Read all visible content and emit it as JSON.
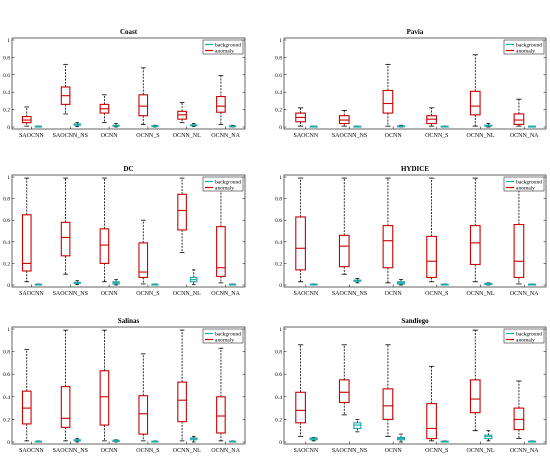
{
  "chart_data": [
    {
      "type": "box",
      "title": "Coast",
      "categories": [
        "SAOCNN",
        "SAOCNN_NS",
        "OCNN",
        "OCNN_S",
        "OCNN_NL",
        "OCNN_NA"
      ],
      "ylim": [
        0,
        1
      ],
      "yticks": [
        "0",
        "0.2",
        "0.4",
        "0.6",
        "0.8",
        "1"
      ],
      "legend": {
        "position": "top-right",
        "entries": [
          "background",
          "anomaly"
        ]
      },
      "series": [
        {
          "name": "anomaly",
          "color": "#cc0000",
          "boxes": [
            {
              "min": 0.01,
              "q1": 0.05,
              "median": 0.08,
              "q3": 0.12,
              "max": 0.23
            },
            {
              "min": 0.15,
              "q1": 0.26,
              "median": 0.36,
              "q3": 0.46,
              "max": 0.72
            },
            {
              "min": 0.05,
              "q1": 0.16,
              "median": 0.21,
              "q3": 0.26,
              "max": 0.37
            },
            {
              "min": 0.03,
              "q1": 0.13,
              "median": 0.24,
              "q3": 0.37,
              "max": 0.68
            },
            {
              "min": 0.05,
              "q1": 0.09,
              "median": 0.14,
              "q3": 0.18,
              "max": 0.28
            },
            {
              "min": 0.03,
              "q1": 0.17,
              "median": 0.24,
              "q3": 0.35,
              "max": 0.59
            }
          ]
        },
        {
          "name": "background",
          "color": "#1aa8a8",
          "boxes": [
            {
              "min": 0.0,
              "q1": 0.0,
              "median": 0.003,
              "q3": 0.006,
              "max": 0.01
            },
            {
              "min": 0.005,
              "q1": 0.02,
              "median": 0.03,
              "q3": 0.035,
              "max": 0.05
            },
            {
              "min": 0.0,
              "q1": 0.01,
              "median": 0.015,
              "q3": 0.02,
              "max": 0.04
            },
            {
              "min": 0.0,
              "q1": 0.005,
              "median": 0.008,
              "q3": 0.012,
              "max": 0.02
            },
            {
              "min": 0.005,
              "q1": 0.015,
              "median": 0.02,
              "q3": 0.025,
              "max": 0.04
            },
            {
              "min": 0.0,
              "q1": 0.003,
              "median": 0.006,
              "q3": 0.01,
              "max": 0.02
            }
          ]
        }
      ]
    },
    {
      "type": "box",
      "title": "Pavia",
      "categories": [
        "SAOCNN",
        "SAOCNN_NS",
        "OCNN",
        "OCNN_S",
        "OCNN_NL",
        "OCNN_NA"
      ],
      "ylim": [
        0,
        1
      ],
      "yticks": [
        "0",
        "0.2",
        "0.4",
        "0.6",
        "0.8",
        "1"
      ],
      "legend": {
        "position": "top-right",
        "entries": [
          "background",
          "anomaly"
        ]
      },
      "series": [
        {
          "name": "anomaly",
          "color": "#cc0000",
          "boxes": [
            {
              "min": 0.01,
              "q1": 0.06,
              "median": 0.11,
              "q3": 0.16,
              "max": 0.22
            },
            {
              "min": 0.01,
              "q1": 0.04,
              "median": 0.08,
              "q3": 0.13,
              "max": 0.19
            },
            {
              "min": 0.01,
              "q1": 0.16,
              "median": 0.27,
              "q3": 0.42,
              "max": 0.72
            },
            {
              "min": 0.01,
              "q1": 0.04,
              "median": 0.09,
              "q3": 0.13,
              "max": 0.22
            },
            {
              "min": 0.01,
              "q1": 0.14,
              "median": 0.24,
              "q3": 0.41,
              "max": 0.83
            },
            {
              "min": 0.01,
              "q1": 0.03,
              "median": 0.08,
              "q3": 0.15,
              "max": 0.32
            }
          ]
        },
        {
          "name": "background",
          "color": "#1aa8a8",
          "boxes": [
            {
              "min": 0.0,
              "q1": 0.0,
              "median": 0.003,
              "q3": 0.006,
              "max": 0.01
            },
            {
              "min": 0.0,
              "q1": 0.0,
              "median": 0.003,
              "q3": 0.006,
              "max": 0.01
            },
            {
              "min": 0.0,
              "q1": 0.003,
              "median": 0.006,
              "q3": 0.01,
              "max": 0.02
            },
            {
              "min": 0.0,
              "q1": 0.0,
              "median": 0.003,
              "q3": 0.006,
              "max": 0.01
            },
            {
              "min": 0.0,
              "q1": 0.01,
              "median": 0.015,
              "q3": 0.02,
              "max": 0.04
            },
            {
              "min": 0.0,
              "q1": 0.0,
              "median": 0.003,
              "q3": 0.006,
              "max": 0.01
            }
          ]
        }
      ]
    },
    {
      "type": "box",
      "title": "DC",
      "categories": [
        "SAOCNN",
        "SAOCNN_NS",
        "OCNN",
        "OCNN_S",
        "OCNN_NL",
        "OCNN_NA"
      ],
      "ylim": [
        0,
        1
      ],
      "yticks": [
        "0",
        "0.2",
        "0.4",
        "0.6",
        "0.8",
        "1"
      ],
      "legend": {
        "position": "top-right",
        "entries": [
          "background",
          "anomaly"
        ]
      },
      "series": [
        {
          "name": "anomaly",
          "color": "#cc0000",
          "boxes": [
            {
              "min": 0.03,
              "q1": 0.13,
              "median": 0.2,
              "q3": 0.65,
              "max": 0.99
            },
            {
              "min": 0.1,
              "q1": 0.27,
              "median": 0.44,
              "q3": 0.58,
              "max": 0.99
            },
            {
              "min": 0.03,
              "q1": 0.2,
              "median": 0.37,
              "q3": 0.52,
              "max": 0.99
            },
            {
              "min": 0.01,
              "q1": 0.07,
              "median": 0.12,
              "q3": 0.39,
              "max": 0.6
            },
            {
              "min": 0.3,
              "q1": 0.51,
              "median": 0.69,
              "q3": 0.84,
              "max": 0.99
            },
            {
              "min": 0.02,
              "q1": 0.08,
              "median": 0.16,
              "q3": 0.54,
              "max": 0.92
            }
          ]
        },
        {
          "name": "background",
          "color": "#1aa8a8",
          "boxes": [
            {
              "min": 0.0,
              "q1": 0.0,
              "median": 0.003,
              "q3": 0.006,
              "max": 0.01
            },
            {
              "min": 0.005,
              "q1": 0.015,
              "median": 0.02,
              "q3": 0.025,
              "max": 0.04
            },
            {
              "min": 0.0,
              "q1": 0.01,
              "median": 0.02,
              "q3": 0.03,
              "max": 0.05
            },
            {
              "min": 0.0,
              "q1": 0.0,
              "median": 0.003,
              "q3": 0.006,
              "max": 0.01
            },
            {
              "min": 0.005,
              "q1": 0.03,
              "median": 0.05,
              "q3": 0.07,
              "max": 0.14
            },
            {
              "min": 0.0,
              "q1": 0.0,
              "median": 0.003,
              "q3": 0.006,
              "max": 0.01
            }
          ]
        }
      ]
    },
    {
      "type": "box",
      "title": "HYDICE",
      "categories": [
        "SAOCNN",
        "SAOCNN_NS",
        "OCNN",
        "OCNN_S",
        "OCNN_NL",
        "OCNN_NA"
      ],
      "ylim": [
        0,
        1
      ],
      "yticks": [
        "0",
        "0.2",
        "0.4",
        "0.6",
        "0.8",
        "1"
      ],
      "legend": {
        "position": "top-right",
        "entries": [
          "background",
          "anomaly"
        ]
      },
      "series": [
        {
          "name": "anomaly",
          "color": "#cc0000",
          "boxes": [
            {
              "min": 0.03,
              "q1": 0.14,
              "median": 0.34,
              "q3": 0.63,
              "max": 0.99
            },
            {
              "min": 0.1,
              "q1": 0.17,
              "median": 0.36,
              "q3": 0.46,
              "max": 0.99
            },
            {
              "min": 0.02,
              "q1": 0.16,
              "median": 0.41,
              "q3": 0.55,
              "max": 0.99
            },
            {
              "min": 0.03,
              "q1": 0.07,
              "median": 0.22,
              "q3": 0.45,
              "max": 0.99
            },
            {
              "min": 0.03,
              "q1": 0.19,
              "median": 0.39,
              "q3": 0.55,
              "max": 0.99
            },
            {
              "min": 0.01,
              "q1": 0.07,
              "median": 0.22,
              "q3": 0.56,
              "max": 0.99
            }
          ]
        },
        {
          "name": "background",
          "color": "#1aa8a8",
          "boxes": [
            {
              "min": 0.0,
              "q1": 0.0,
              "median": 0.003,
              "q3": 0.006,
              "max": 0.01
            },
            {
              "min": 0.02,
              "q1": 0.035,
              "median": 0.04,
              "q3": 0.045,
              "max": 0.06
            },
            {
              "min": 0.0,
              "q1": 0.01,
              "median": 0.02,
              "q3": 0.03,
              "max": 0.05
            },
            {
              "min": 0.0,
              "q1": 0.0,
              "median": 0.003,
              "q3": 0.006,
              "max": 0.01
            },
            {
              "min": 0.0,
              "q1": 0.005,
              "median": 0.01,
              "q3": 0.015,
              "max": 0.02
            },
            {
              "min": 0.0,
              "q1": 0.0,
              "median": 0.003,
              "q3": 0.006,
              "max": 0.01
            }
          ]
        }
      ]
    },
    {
      "type": "box",
      "title": "Salinas",
      "categories": [
        "SAOCNN",
        "SAOCNN_NS",
        "OCNN",
        "OCNN_S",
        "OCNN_NL",
        "OCNN_NA"
      ],
      "ylim": [
        0,
        1
      ],
      "yticks": [
        "0",
        "0.2",
        "0.4",
        "0.6",
        "0.8",
        "1"
      ],
      "legend": {
        "position": "top-right",
        "entries": [
          "background",
          "anomaly"
        ]
      },
      "series": [
        {
          "name": "anomaly",
          "color": "#cc0000",
          "boxes": [
            {
              "min": 0.01,
              "q1": 0.16,
              "median": 0.3,
              "q3": 0.45,
              "max": 0.82
            },
            {
              "min": 0.01,
              "q1": 0.13,
              "median": 0.21,
              "q3": 0.49,
              "max": 0.99
            },
            {
              "min": 0.01,
              "q1": 0.15,
              "median": 0.4,
              "q3": 0.63,
              "max": 0.99
            },
            {
              "min": 0.01,
              "q1": 0.07,
              "median": 0.25,
              "q3": 0.41,
              "max": 0.78
            },
            {
              "min": 0.01,
              "q1": 0.18,
              "median": 0.37,
              "q3": 0.53,
              "max": 0.99
            },
            {
              "min": 0.01,
              "q1": 0.08,
              "median": 0.23,
              "q3": 0.4,
              "max": 0.83
            }
          ]
        },
        {
          "name": "background",
          "color": "#1aa8a8",
          "boxes": [
            {
              "min": 0.0,
              "q1": 0.0,
              "median": 0.003,
              "q3": 0.006,
              "max": 0.01
            },
            {
              "min": 0.0,
              "q1": 0.01,
              "median": 0.015,
              "q3": 0.02,
              "max": 0.03
            },
            {
              "min": 0.0,
              "q1": 0.005,
              "median": 0.01,
              "q3": 0.015,
              "max": 0.02
            },
            {
              "min": 0.0,
              "q1": 0.0,
              "median": 0.003,
              "q3": 0.006,
              "max": 0.01
            },
            {
              "min": 0.0,
              "q1": 0.02,
              "median": 0.03,
              "q3": 0.035,
              "max": 0.05
            },
            {
              "min": 0.0,
              "q1": 0.0,
              "median": 0.003,
              "q3": 0.006,
              "max": 0.01
            }
          ]
        }
      ]
    },
    {
      "type": "box",
      "title": "Sandiego",
      "categories": [
        "SAOCNN",
        "SAOCNN_NS",
        "OCNN",
        "OCNN_S",
        "OCNN_NL",
        "OCNN_NA"
      ],
      "ylim": [
        0,
        1
      ],
      "yticks": [
        "0",
        "0.2",
        "0.4",
        "0.6",
        "0.8",
        "1"
      ],
      "legend": {
        "position": "top-right",
        "entries": [
          "background",
          "anomaly"
        ]
      },
      "series": [
        {
          "name": "anomaly",
          "color": "#cc0000",
          "boxes": [
            {
              "min": 0.05,
              "q1": 0.17,
              "median": 0.28,
              "q3": 0.44,
              "max": 0.86
            },
            {
              "min": 0.24,
              "q1": 0.35,
              "median": 0.44,
              "q3": 0.55,
              "max": 0.86
            },
            {
              "min": 0.05,
              "q1": 0.2,
              "median": 0.32,
              "q3": 0.47,
              "max": 0.86
            },
            {
              "min": 0.01,
              "q1": 0.03,
              "median": 0.12,
              "q3": 0.34,
              "max": 0.67
            },
            {
              "min": 0.1,
              "q1": 0.26,
              "median": 0.38,
              "q3": 0.55,
              "max": 0.99
            },
            {
              "min": 0.03,
              "q1": 0.11,
              "median": 0.2,
              "q3": 0.3,
              "max": 0.54
            }
          ]
        },
        {
          "name": "background",
          "color": "#1aa8a8",
          "boxes": [
            {
              "min": 0.01,
              "q1": 0.02,
              "median": 0.03,
              "q3": 0.035,
              "max": 0.04
            },
            {
              "min": 0.09,
              "q1": 0.12,
              "median": 0.15,
              "q3": 0.17,
              "max": 0.2
            },
            {
              "min": 0.0,
              "q1": 0.02,
              "median": 0.03,
              "q3": 0.04,
              "max": 0.07
            },
            {
              "min": 0.0,
              "q1": 0.0,
              "median": 0.003,
              "q3": 0.006,
              "max": 0.01
            },
            {
              "min": 0.01,
              "q1": 0.03,
              "median": 0.05,
              "q3": 0.06,
              "max": 0.1
            },
            {
              "min": 0.0,
              "q1": 0.0,
              "median": 0.003,
              "q3": 0.006,
              "max": 0.01
            }
          ]
        }
      ]
    }
  ]
}
